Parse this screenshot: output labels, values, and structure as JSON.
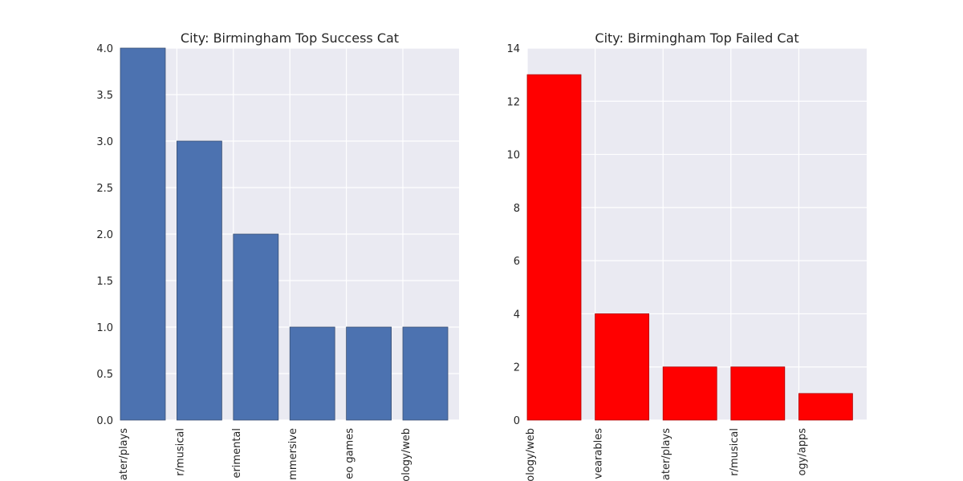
{
  "chart_data": [
    {
      "type": "bar",
      "title": "City: Birmingham Top Success Cat",
      "xlabel": "",
      "ylabel": "",
      "categories": [
        "theater/plays",
        "theater/musical",
        "art/experimental",
        "theater/immersive",
        "games/video games",
        "technology/web"
      ],
      "tick_labels_visible": [
        "ater/plays",
        "r/musical",
        "erimental",
        "mmersive",
        "eo games",
        "ology/web"
      ],
      "values": [
        4,
        3,
        2,
        1,
        1,
        1
      ],
      "ylim": [
        0,
        4.0
      ],
      "yticks": [
        "0.0",
        "0.5",
        "1.0",
        "1.5",
        "2.0",
        "2.5",
        "3.0",
        "3.5",
        "4.0"
      ],
      "ytick_values": [
        0,
        0.5,
        1.0,
        1.5,
        2.0,
        2.5,
        3.0,
        3.5,
        4.0
      ],
      "color": "#4c72b0",
      "grid": true
    },
    {
      "type": "bar",
      "title": "City: Birmingham Top Failed Cat",
      "xlabel": "",
      "ylabel": "",
      "categories": [
        "technology/web",
        "technology/wearables",
        "theater/plays",
        "theater/musical",
        "technology/apps"
      ],
      "tick_labels_visible": [
        "ology/web",
        "vearables",
        "ater/plays",
        "r/musical",
        "ogy/apps"
      ],
      "values": [
        13,
        4,
        2,
        2,
        1
      ],
      "ylim": [
        0,
        14
      ],
      "yticks": [
        "0",
        "2",
        "4",
        "6",
        "8",
        "10",
        "12",
        "14"
      ],
      "ytick_values": [
        0,
        2,
        4,
        6,
        8,
        10,
        12,
        14
      ],
      "color": "#ff0000",
      "grid": true
    }
  ],
  "colors": {
    "plot_background": "#eaeaf2",
    "grid": "#ffffff",
    "text": "#262626"
  }
}
